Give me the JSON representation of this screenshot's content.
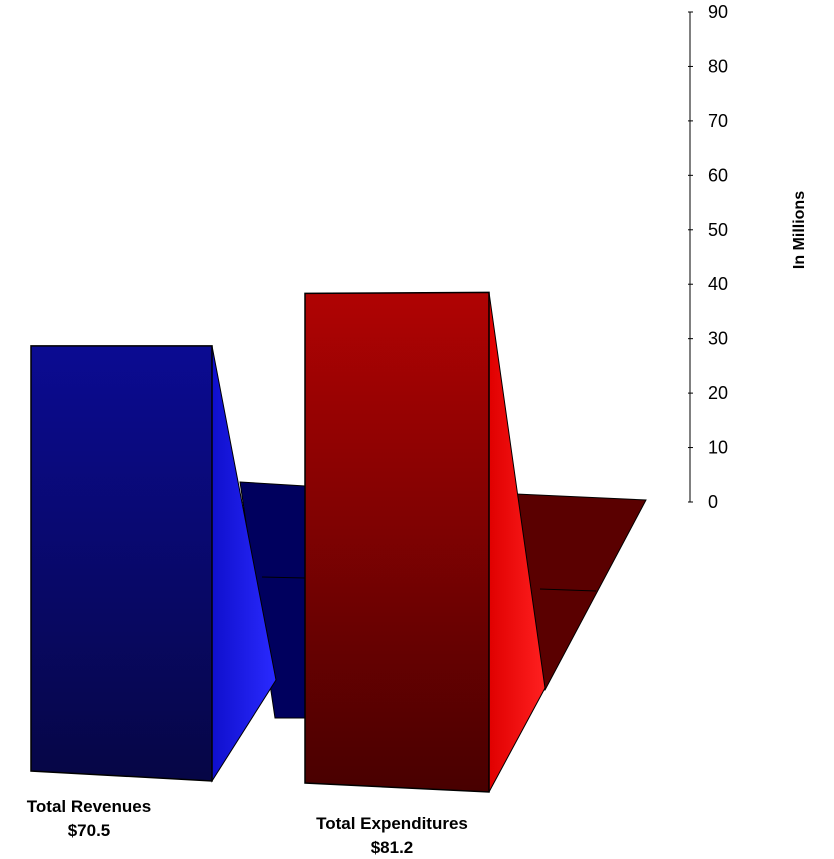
{
  "chart_data": {
    "type": "bar",
    "categories": [
      "Total Revenues",
      "Total Expenditures"
    ],
    "value_labels": [
      "$70.5",
      "$81.2"
    ],
    "values": [
      70.5,
      81.2
    ],
    "ylabel": "In Millions",
    "ylim": [
      0,
      90
    ],
    "yticks": [
      0,
      10,
      20,
      30,
      40,
      50,
      60,
      70,
      80,
      90
    ],
    "style": "3d",
    "grid": false,
    "colors": {
      "revenues_front_top": "#0a0a8a",
      "revenues_front_bottom": "#060648",
      "revenues_side": "#1a1aff",
      "revenues_floor": "#00005e",
      "expenditures_front_top": "#b00000",
      "expenditures_front_bottom": "#4a0000",
      "expenditures_side": "#ff1010",
      "expenditures_floor": "#5a0000"
    }
  }
}
